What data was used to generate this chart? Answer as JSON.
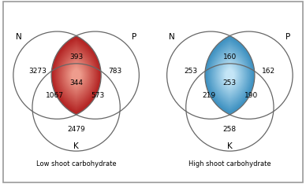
{
  "left": {
    "title": "Low shoot carbohydrate",
    "values": {
      "n_only": "3273",
      "p_only": "783",
      "k_only": "2479",
      "np": "393",
      "nk": "1067",
      "pk": "573",
      "npk": "344"
    },
    "lens_color_outer": "#b22020",
    "lens_color_inner": "#f0a090"
  },
  "right": {
    "title": "High shoot carbohydrate",
    "values": {
      "n_only": "253",
      "p_only": "162",
      "k_only": "258",
      "np": "160",
      "nk": "219",
      "pk": "190",
      "npk": "253"
    },
    "lens_color_outer": "#3a8fc0",
    "lens_color_inner": "#c8e8f8"
  },
  "background_color": "#ffffff",
  "border_color": "#999999",
  "circle_edge_color": "#666666",
  "figsize": [
    3.88,
    2.34
  ],
  "dpi": 100
}
